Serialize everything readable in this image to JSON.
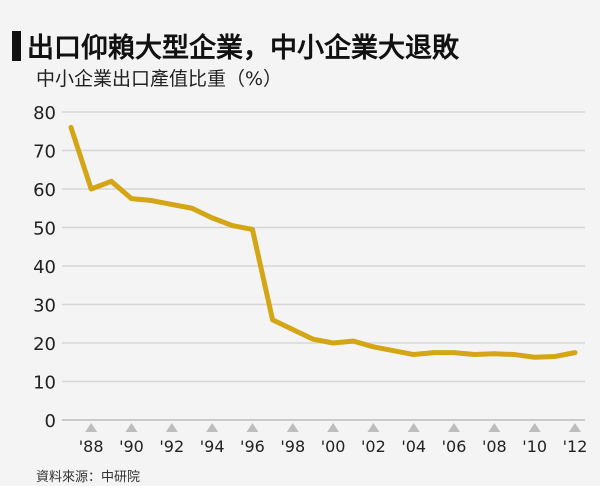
{
  "chart_data": {
    "type": "line",
    "title": "出口仰賴大型企業，中小企業大退敗",
    "subtitle": "中小企業出口產值比重（%）",
    "source": "資料來源：中研院",
    "ylim": [
      0,
      80
    ],
    "yticks": [
      0,
      10,
      20,
      30,
      40,
      50,
      60,
      70,
      80
    ],
    "xticks": [
      {
        "year": 1988,
        "label": "'88"
      },
      {
        "year": 1990,
        "label": "'90"
      },
      {
        "year": 1992,
        "label": "'92"
      },
      {
        "year": 1994,
        "label": "'94"
      },
      {
        "year": 1996,
        "label": "'96"
      },
      {
        "year": 1998,
        "label": "'98"
      },
      {
        "year": 2000,
        "label": "'00"
      },
      {
        "year": 2002,
        "label": "'02"
      },
      {
        "year": 2004,
        "label": "'04"
      },
      {
        "year": 2006,
        "label": "'06"
      },
      {
        "year": 2008,
        "label": "'08"
      },
      {
        "year": 2010,
        "label": "'10"
      },
      {
        "year": 2012,
        "label": "'12"
      }
    ],
    "grid": true,
    "line_color": "#d4a514",
    "series": [
      {
        "name": "中小企業出口產值比重",
        "x": [
          1987,
          1988,
          1989,
          1990,
          1991,
          1992,
          1993,
          1994,
          1995,
          1996,
          1997,
          1998,
          1999,
          2000,
          2001,
          2002,
          2003,
          2004,
          2005,
          2006,
          2007,
          2008,
          2009,
          2010,
          2011,
          2012
        ],
        "values": [
          76,
          60,
          62,
          57.5,
          57,
          56,
          55,
          52.5,
          50.5,
          49.5,
          26,
          23.5,
          21,
          20,
          20.5,
          19,
          18,
          17,
          17.5,
          17.5,
          17,
          17.2,
          17,
          16.3,
          16.5,
          17.5
        ]
      }
    ]
  }
}
